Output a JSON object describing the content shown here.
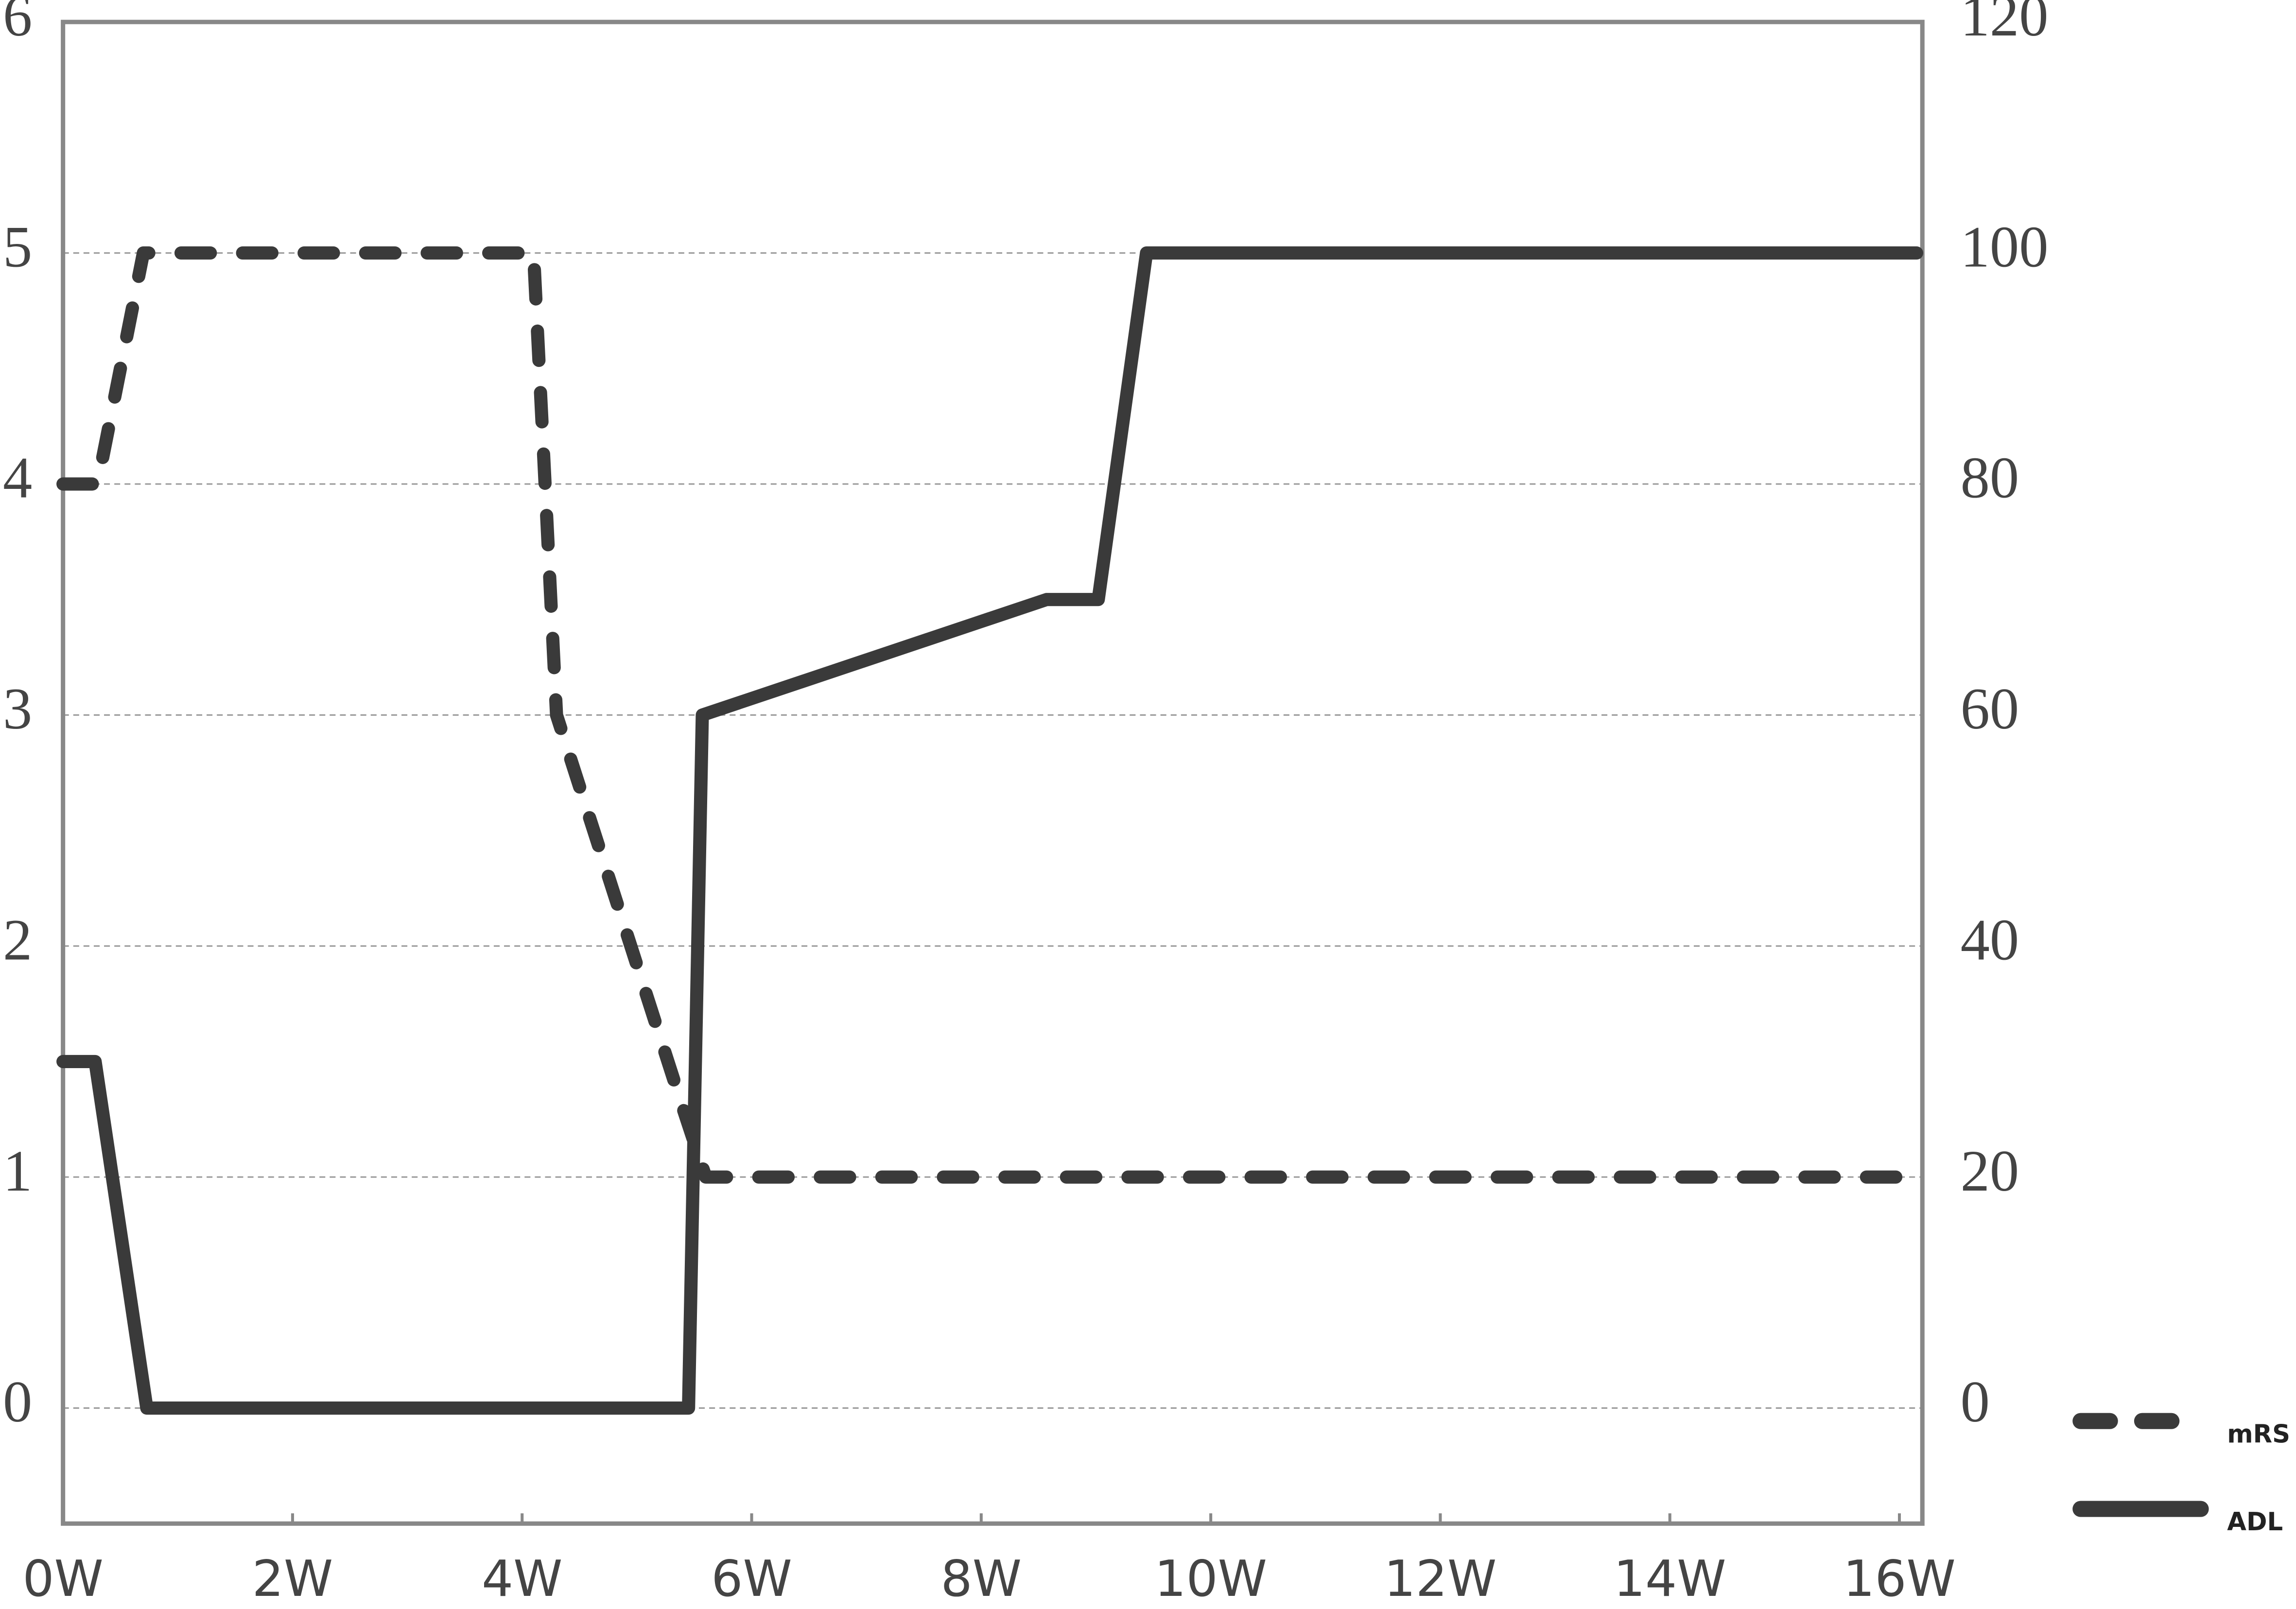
{
  "chart_data": {
    "type": "line",
    "xlim": [
      0,
      16.2
    ],
    "xticks": [
      {
        "value": 0,
        "label": "0W"
      },
      {
        "value": 2,
        "label": "2W"
      },
      {
        "value": 4,
        "label": "4W"
      },
      {
        "value": 6,
        "label": "6W"
      },
      {
        "value": 8,
        "label": "8W"
      },
      {
        "value": 10,
        "label": "10W"
      },
      {
        "value": 12,
        "label": "12W"
      },
      {
        "value": 14,
        "label": "14W"
      },
      {
        "value": 16,
        "label": "16W"
      }
    ],
    "ylim": [
      -0.5,
      6
    ],
    "yticks": [
      0,
      1,
      2,
      3,
      4,
      5,
      6
    ],
    "y2lim": [
      -10,
      120
    ],
    "y2ticks": [
      0,
      20,
      40,
      60,
      80,
      100,
      120
    ],
    "grid": true,
    "legend": "right-bottom",
    "series": [
      {
        "name": "mRS",
        "color": "#3a3a3a",
        "dashed": true,
        "x": [
          0,
          0.3,
          0.7,
          4.1,
          4.3,
          5.4,
          5.6,
          16.15
        ],
        "values": [
          4,
          4,
          5,
          5,
          3,
          1.3,
          1,
          1
        ]
      },
      {
        "name": "ADL",
        "color": "#3a3a3a",
        "dashed": false,
        "axis": "y2",
        "x": [
          0,
          0.28,
          0.73,
          5.45,
          5.57,
          8.57,
          9.02,
          9.44,
          16.15
        ],
        "values": [
          30,
          30,
          0,
          0,
          60,
          70,
          70,
          100,
          100
        ]
      }
    ]
  }
}
